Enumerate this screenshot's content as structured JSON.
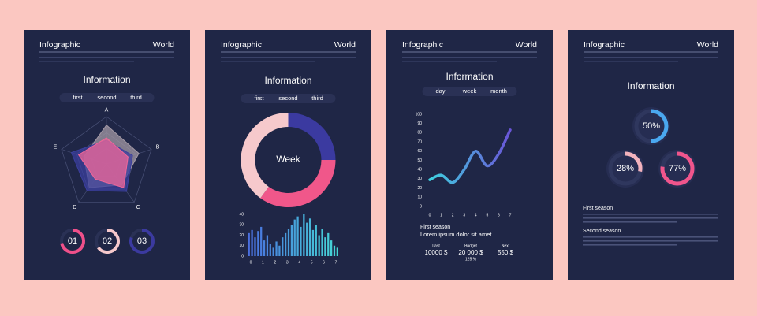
{
  "cards": [
    {
      "header": {
        "title": "Infographic",
        "right": "World"
      },
      "heading": "Information",
      "tabs": [
        "first",
        "second",
        "third"
      ],
      "radar": {
        "axes": [
          "A",
          "B",
          "C",
          "D",
          "E"
        ],
        "max": 100,
        "series": [
          {
            "color": "#a49aa6",
            "values": [
              82,
              72,
              55,
              62,
              50
            ]
          },
          {
            "color": "#3b3f9e",
            "values": [
              50,
              58,
              72,
              70,
              78
            ]
          },
          {
            "color": "#f0679a",
            "values": [
              55,
              48,
              62,
              40,
              62
            ]
          }
        ]
      },
      "rings": [
        {
          "label": "01",
          "value": 72,
          "color": "#f0508a"
        },
        {
          "label": "02",
          "value": 65,
          "color": "#f6c9cc"
        },
        {
          "label": "03",
          "value": 80,
          "color": "#3b3aa0"
        }
      ]
    },
    {
      "header": {
        "title": "Infographic",
        "right": "World"
      },
      "heading": "Information",
      "tabs": [
        "first",
        "second",
        "third"
      ],
      "donut": {
        "center": "Week",
        "segments": [
          {
            "value": 25,
            "color": "#3b3aa0"
          },
          {
            "value": 35,
            "color": "#f0578a"
          },
          {
            "value": 40,
            "color": "#f6c9cc"
          }
        ]
      },
      "bars": {
        "ylim": [
          0,
          40
        ],
        "yticks": [
          0,
          10,
          20,
          30,
          40
        ],
        "xticks": [
          "0",
          "1",
          "2",
          "3",
          "4",
          "5",
          "6",
          "7"
        ],
        "colors": [
          "#4a6fe0",
          "#45d6d6"
        ],
        "values": [
          22,
          25,
          18,
          24,
          28,
          15,
          20,
          12,
          8,
          14,
          10,
          18,
          22,
          26,
          30,
          35,
          38,
          28,
          40,
          32,
          36,
          25,
          30,
          20,
          26,
          18,
          22,
          15,
          10,
          8
        ]
      }
    },
    {
      "header": {
        "title": "Infographic",
        "right": "World"
      },
      "heading": "Information",
      "tabs": [
        "day",
        "week",
        "month"
      ],
      "line": {
        "xlim": [
          0,
          7
        ],
        "ylim": [
          0,
          100
        ],
        "yticks": [
          0,
          10,
          20,
          30,
          40,
          50,
          60,
          70,
          80,
          90,
          100
        ],
        "xticks": [
          0,
          1,
          2,
          3,
          4,
          5,
          6,
          7
        ],
        "colors": [
          "#3fd0e0",
          "#6a55d8"
        ],
        "x": [
          0,
          1,
          2,
          3,
          4,
          5,
          6,
          7
        ],
        "values": [
          29,
          34,
          26,
          40,
          60,
          44,
          57,
          83
        ]
      },
      "summary": {
        "title": "First season",
        "subtitle": "Lorem ipsum dolor sit amet"
      },
      "stats": [
        {
          "caption": "Last",
          "value": "10000 $"
        },
        {
          "caption": "Budget",
          "value": "20 000 $",
          "note": "125 %"
        },
        {
          "caption": "Next",
          "value": "550 $"
        }
      ]
    },
    {
      "header": {
        "title": "Infographic",
        "right": "World"
      },
      "heading": "Information",
      "rings": [
        {
          "label": "50%",
          "value": 50,
          "color": "#4aa8f0"
        },
        {
          "label": "28%",
          "value": 28,
          "color": "#f3b3bd"
        },
        {
          "label": "77%",
          "value": 77,
          "color": "#f0558c"
        }
      ],
      "sections": [
        "First season",
        "Second season"
      ]
    }
  ]
}
